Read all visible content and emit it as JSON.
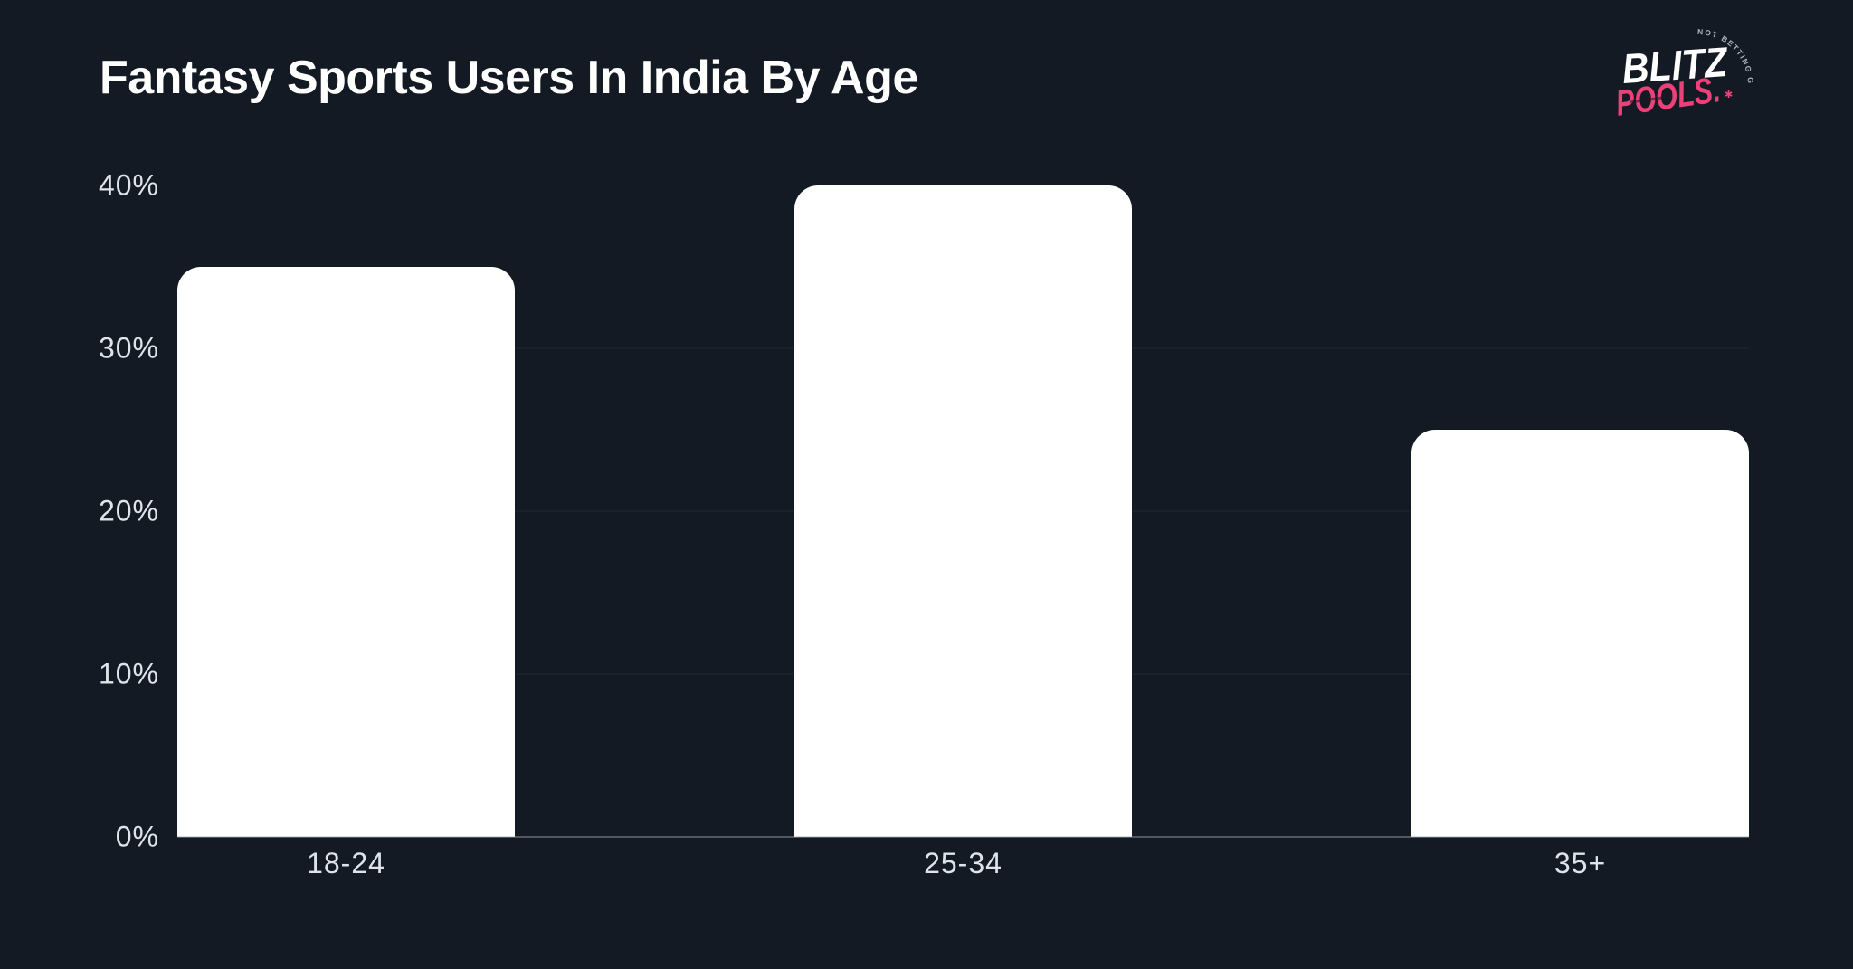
{
  "page": {
    "background": "#141A23"
  },
  "logo": {
    "brand_top": "BLITZ",
    "brand_bottom": "POOLS.",
    "arc_text": "NOT BETTING GAMES",
    "star": "✱",
    "brand_pink": "#EC4078",
    "brand_white": "#FFFFFF"
  },
  "chart_data": {
    "type": "bar",
    "title": "Fantasy Sports Users In India By Age",
    "categories": [
      "18-24",
      "25-34",
      "35+"
    ],
    "values": [
      35,
      40,
      25
    ],
    "unit": "%",
    "xlabel": "",
    "ylabel": "",
    "ylim": [
      0,
      40
    ],
    "yticks": [
      40,
      30,
      20,
      10,
      0
    ],
    "gridlines_at": [
      30,
      20,
      10
    ],
    "grid": "horizontal",
    "legend": "none",
    "bar_color": "#FFFFFF",
    "axis_label_color": "#DFE3EA",
    "gridline_color": "#1B212C",
    "baseline_color": "rgba(163,172,186,0.42)",
    "background": "#141A23"
  }
}
